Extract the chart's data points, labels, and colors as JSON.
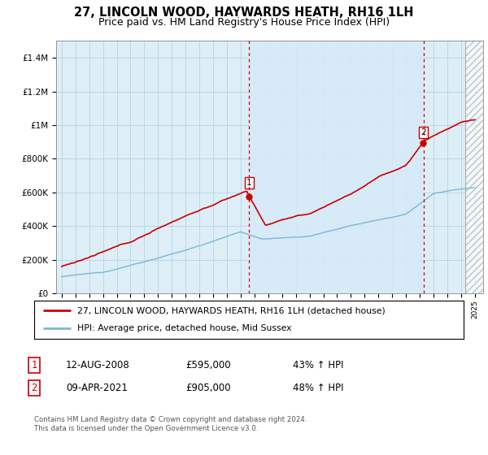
{
  "title": "27, LINCOLN WOOD, HAYWARDS HEATH, RH16 1LH",
  "subtitle": "Price paid vs. HM Land Registry's House Price Index (HPI)",
  "ylim": [
    0,
    1500000
  ],
  "yticks": [
    0,
    200000,
    400000,
    600000,
    800000,
    1000000,
    1200000,
    1400000
  ],
  "ytick_labels": [
    "£0",
    "£200K",
    "£400K",
    "£600K",
    "£800K",
    "£1M",
    "£1.2M",
    "£1.4M"
  ],
  "sale1_date": 2008.617,
  "sale1_price": 595000,
  "sale2_date": 2021.274,
  "sale2_price": 905000,
  "hpi_color": "#7ab8d9",
  "price_color": "#cc0000",
  "vline_color": "#cc0000",
  "shade_color": "#d6eaf8",
  "background_color": "#ddeef7",
  "grid_color": "#b0cfe0",
  "legend1_text": "27, LINCOLN WOOD, HAYWARDS HEATH, RH16 1LH (detached house)",
  "legend2_text": "HPI: Average price, detached house, Mid Sussex",
  "note1_label": "1",
  "note1_date": "12-AUG-2008",
  "note1_price": "£595,000",
  "note1_hpi": "43% ↑ HPI",
  "note2_label": "2",
  "note2_date": "09-APR-2021",
  "note2_price": "£905,000",
  "note2_hpi": "48% ↑ HPI",
  "footer": "Contains HM Land Registry data © Crown copyright and database right 2024.\nThis data is licensed under the Open Government Licence v3.0.",
  "title_fontsize": 10.5,
  "subtitle_fontsize": 9
}
